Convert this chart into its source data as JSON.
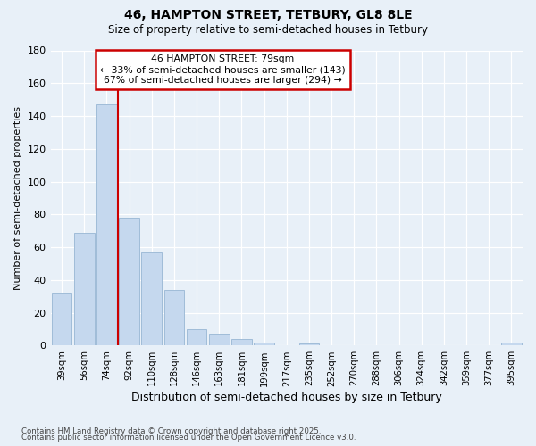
{
  "title1": "46, HAMPTON STREET, TETBURY, GL8 8LE",
  "title2": "Size of property relative to semi-detached houses in Tetbury",
  "xlabel": "Distribution of semi-detached houses by size in Tetbury",
  "ylabel": "Number of semi-detached properties",
  "property_label": "46 HAMPTON STREET: 79sqm",
  "annotation_line1": "← 33% of semi-detached houses are smaller (143)",
  "annotation_line2": "67% of semi-detached houses are larger (294) →",
  "footer1": "Contains HM Land Registry data © Crown copyright and database right 2025.",
  "footer2": "Contains public sector information licensed under the Open Government Licence v3.0.",
  "bin_labels": [
    "39sqm",
    "56sqm",
    "74sqm",
    "92sqm",
    "110sqm",
    "128sqm",
    "146sqm",
    "163sqm",
    "181sqm",
    "199sqm",
    "217sqm",
    "235sqm",
    "252sqm",
    "270sqm",
    "288sqm",
    "306sqm",
    "324sqm",
    "342sqm",
    "359sqm",
    "377sqm",
    "395sqm"
  ],
  "bar_values": [
    32,
    69,
    147,
    78,
    57,
    34,
    10,
    7,
    4,
    2,
    0,
    1,
    0,
    0,
    0,
    0,
    0,
    0,
    0,
    0,
    2
  ],
  "bar_color": "#c5d8ee",
  "bar_edge_color": "#a0bcd8",
  "vline_color": "#cc0000",
  "annotation_box_edge_color": "#cc0000",
  "background_color": "#e8f0f8",
  "ylim": [
    0,
    180
  ],
  "yticks": [
    0,
    20,
    40,
    60,
    80,
    100,
    120,
    140,
    160,
    180
  ],
  "vline_x": 2.5
}
